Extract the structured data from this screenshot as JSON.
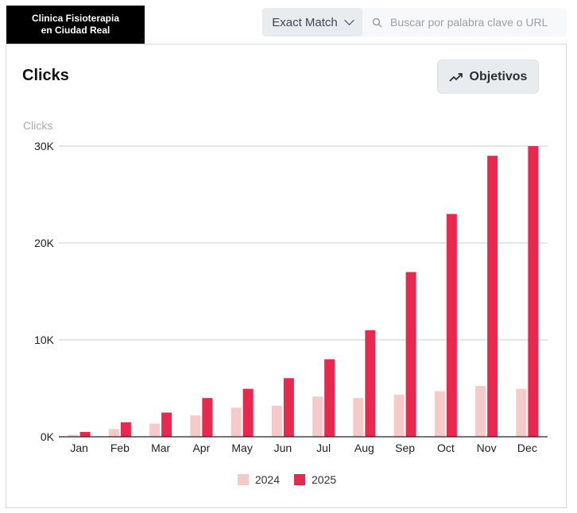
{
  "brand": {
    "line1": "Clinica Fisioterapia",
    "line2": "en Ciudad Real"
  },
  "filter": {
    "match_label": "Exact Match",
    "search_placeholder": "Buscar por palabra clave o URL"
  },
  "card": {
    "title": "Clicks",
    "objectives_label": "Objetivos"
  },
  "colors": {
    "series_2024": "#f5cac9",
    "series_2025": "#e8294f",
    "grid": "#cccccc",
    "axis": "#222222"
  },
  "chart_data": {
    "type": "bar",
    "ylabel": "Clicks",
    "categories": [
      "Jan",
      "Feb",
      "Mar",
      "Apr",
      "May",
      "Jun",
      "Jul",
      "Aug",
      "Sep",
      "Oct",
      "Nov",
      "Dec"
    ],
    "series": [
      {
        "name": "2024",
        "values": [
          200,
          800,
          1350,
          2200,
          3000,
          3200,
          4150,
          4000,
          4350,
          4700,
          5250,
          4950
        ]
      },
      {
        "name": "2025",
        "values": [
          500,
          1500,
          2500,
          4000,
          4950,
          6050,
          8000,
          11000,
          17000,
          23000,
          29000,
          30000
        ]
      }
    ],
    "ylim": [
      0,
      30000
    ],
    "yticks": [
      0,
      10000,
      20000,
      30000
    ],
    "ytick_labels": [
      "0K",
      "10K",
      "20K",
      "30K"
    ],
    "grid": true,
    "legend": "bottom"
  }
}
